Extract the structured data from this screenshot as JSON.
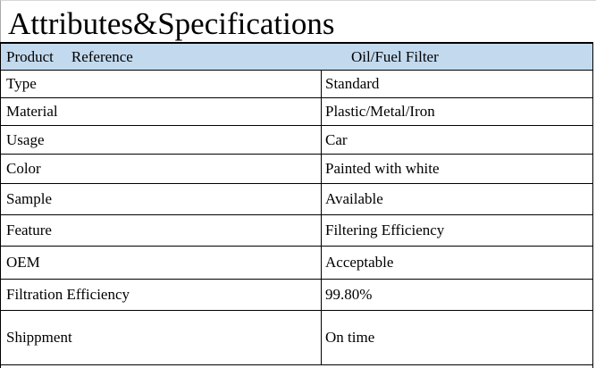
{
  "title": "Attributes&Specifications",
  "colors": {
    "header_bg": "#c3daee",
    "border": "#000000"
  },
  "table": {
    "header": {
      "product_label": "Product",
      "reference_label": "Reference",
      "value": "Oil/Fuel Filter"
    },
    "rows": [
      {
        "label": "Type",
        "value": "Standard"
      },
      {
        "label": "Material",
        "value": "Plastic/Metal/Iron"
      },
      {
        "label": "Usage",
        "value": "Car"
      },
      {
        "label": "Color",
        "value": "Painted with white"
      },
      {
        "label": "Sample",
        "value": "Available"
      },
      {
        "label": "Feature",
        "value": "Filtering Efficiency"
      },
      {
        "label": "OEM",
        "value": "Acceptable"
      },
      {
        "label": "Filtration Efficiency",
        "value": "99.80%"
      },
      {
        "label": "Shippment",
        "value": "On time"
      }
    ]
  }
}
